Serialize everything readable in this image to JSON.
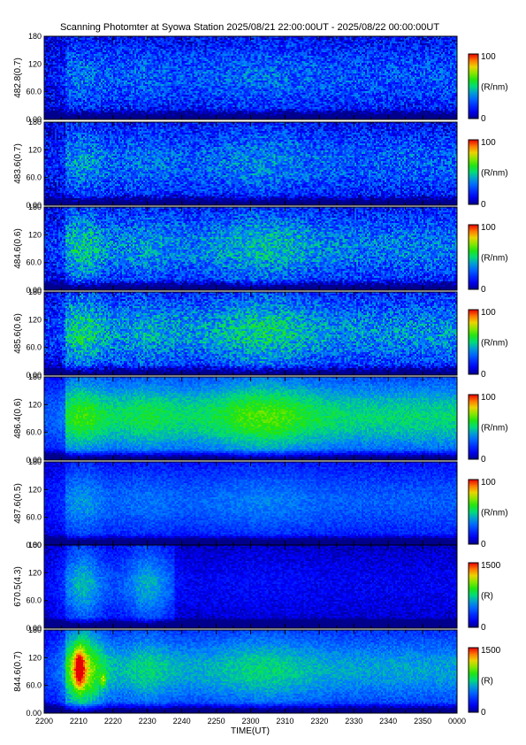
{
  "title": "Scanning Photomter at Syowa Station  2025/08/21 22:00:00UT - 2025/08/22 00:00:00UT",
  "chart_data": {
    "type": "heatmap",
    "title": "Scanning Photomter at Syowa Station  2025/08/21 22:00:00UT - 2025/08/22 00:00:00UT",
    "xlabel": "TIME(UT)",
    "x_ticks": [
      "2200",
      "2210",
      "2220",
      "2230",
      "2240",
      "2250",
      "2300",
      "2310",
      "2320",
      "2330",
      "2340",
      "2350",
      "0000"
    ],
    "y_ticks": [
      "0.00",
      "60.0",
      "120",
      "180"
    ],
    "ylim": [
      0,
      180
    ],
    "colormap": "rainbow (blue-green-yellow-red)",
    "panels": [
      {
        "ylabel": "482.8(0.7)",
        "cbar_max": "100",
        "cbar_min": "0",
        "unit": "(R/nm)",
        "level": 0.26,
        "event_2210": 0.06,
        "event_2230": 0.03,
        "event_2300": 0.05
      },
      {
        "ylabel": "483.6(0.7)",
        "cbar_max": "100",
        "cbar_min": "0",
        "unit": "(R/nm)",
        "level": 0.28,
        "event_2210": 0.1,
        "event_2230": 0.05,
        "event_2300": 0.07
      },
      {
        "ylabel": "484.6(0.6)",
        "cbar_max": "100",
        "cbar_min": "0",
        "unit": "(R/nm)",
        "level": 0.33,
        "event_2210": 0.15,
        "event_2230": 0.05,
        "event_2300": 0.12
      },
      {
        "ylabel": "485.6(0.6)",
        "cbar_max": "100",
        "cbar_min": "0",
        "unit": "(R/nm)",
        "level": 0.36,
        "event_2210": 0.16,
        "event_2230": 0.06,
        "event_2300": 0.14
      },
      {
        "ylabel": "486.4(0.6)",
        "cbar_max": "100",
        "cbar_min": "0",
        "unit": "(R/nm)",
        "level": 0.5,
        "event_2210": 0.12,
        "event_2230": 0.06,
        "event_2300": 0.15
      },
      {
        "ylabel": "487.6(0.5)",
        "cbar_max": "100",
        "cbar_min": "0",
        "unit": "(R/nm)",
        "level": 0.28,
        "event_2210": 0.1,
        "event_2230": 0.04,
        "event_2300": 0.06
      },
      {
        "ylabel": "670.5(4.3)",
        "cbar_max": "1500",
        "cbar_min": "0",
        "unit": "(R)",
        "level": 0.2,
        "event_2210": 0.24,
        "event_2230": 0.22,
        "event_2300": 0.04
      },
      {
        "ylabel": "844.6(0.7)",
        "cbar_max": "1500",
        "cbar_min": "0",
        "unit": "(R)",
        "level": 0.4,
        "event_2210": 0.35,
        "event_2230": 0.1,
        "event_2300": 0.1
      }
    ]
  }
}
